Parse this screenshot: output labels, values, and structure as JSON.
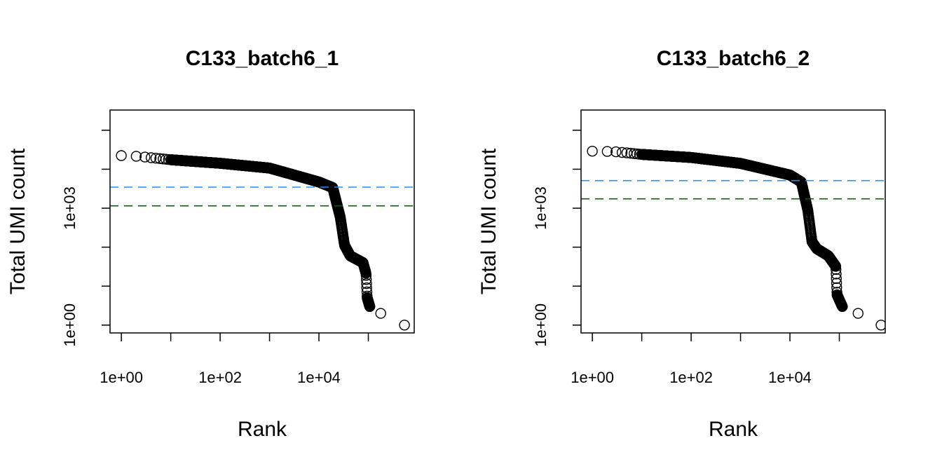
{
  "chart_data": [
    {
      "type": "scatter",
      "title": "C133_batch6_1",
      "xlabel": "Rank",
      "ylabel": "Total UMI count",
      "xscale": "log",
      "yscale": "log",
      "xlim": [
        0.59,
        850000
      ],
      "ylim": [
        0.63,
        330000
      ],
      "xticks": [
        1,
        10,
        100,
        1000,
        10000,
        100000
      ],
      "xtick_labels": [
        "1e+00",
        "",
        "1e+02",
        "",
        "1e+04",
        ""
      ],
      "yticks": [
        1,
        10,
        100,
        1000,
        10000,
        100000
      ],
      "ytick_labels": [
        "1e+00",
        "",
        "",
        "1e+03",
        "",
        ""
      ],
      "grid": false,
      "marker": "open-circle",
      "points": [
        [
          1,
          22400
        ],
        [
          2,
          21500
        ],
        [
          3,
          20500
        ],
        [
          10,
          17500
        ],
        [
          100,
          14200
        ],
        [
          1000,
          10700
        ],
        [
          10000,
          4700
        ],
        [
          19000,
          3380
        ],
        [
          27000,
          590
        ],
        [
          33000,
          112
        ],
        [
          43000,
          60
        ],
        [
          78000,
          40
        ],
        [
          90000,
          21
        ],
        [
          95000,
          5
        ],
        [
          107000,
          3
        ],
        [
          178000,
          2
        ],
        [
          540000,
          1
        ]
      ],
      "hlines": [
        {
          "value": 3470,
          "color": "#1E90FF",
          "style": "dashed"
        },
        {
          "value": 1150,
          "color": "#006400",
          "style": "dashed"
        }
      ]
    },
    {
      "type": "scatter",
      "title": "C133_batch6_2",
      "xlabel": "Rank",
      "ylabel": "Total UMI count",
      "xscale": "log",
      "yscale": "log",
      "xlim": [
        0.59,
        850000
      ],
      "ylim": [
        0.63,
        330000
      ],
      "xticks": [
        1,
        10,
        100,
        1000,
        10000,
        100000
      ],
      "xtick_labels": [
        "1e+00",
        "",
        "1e+02",
        "",
        "1e+04",
        ""
      ],
      "yticks": [
        1,
        10,
        100,
        1000,
        10000,
        100000
      ],
      "ytick_labels": [
        "1e+00",
        "",
        "",
        "1e+03",
        "",
        ""
      ],
      "grid": false,
      "marker": "open-circle",
      "points": [
        [
          1,
          29000
        ],
        [
          2,
          28500
        ],
        [
          3,
          28000
        ],
        [
          10,
          24000
        ],
        [
          100,
          20000
        ],
        [
          1000,
          14100
        ],
        [
          10000,
          7100
        ],
        [
          17000,
          4700
        ],
        [
          23000,
          890
        ],
        [
          28000,
          138
        ],
        [
          35000,
          91
        ],
        [
          60000,
          60
        ],
        [
          85000,
          32
        ],
        [
          90000,
          6
        ],
        [
          115000,
          3
        ],
        [
          240000,
          2
        ],
        [
          700000,
          1
        ]
      ],
      "hlines": [
        {
          "value": 5100,
          "color": "#1E90FF",
          "style": "dashed"
        },
        {
          "value": 1740,
          "color": "#006400",
          "style": "dashed"
        }
      ]
    }
  ]
}
